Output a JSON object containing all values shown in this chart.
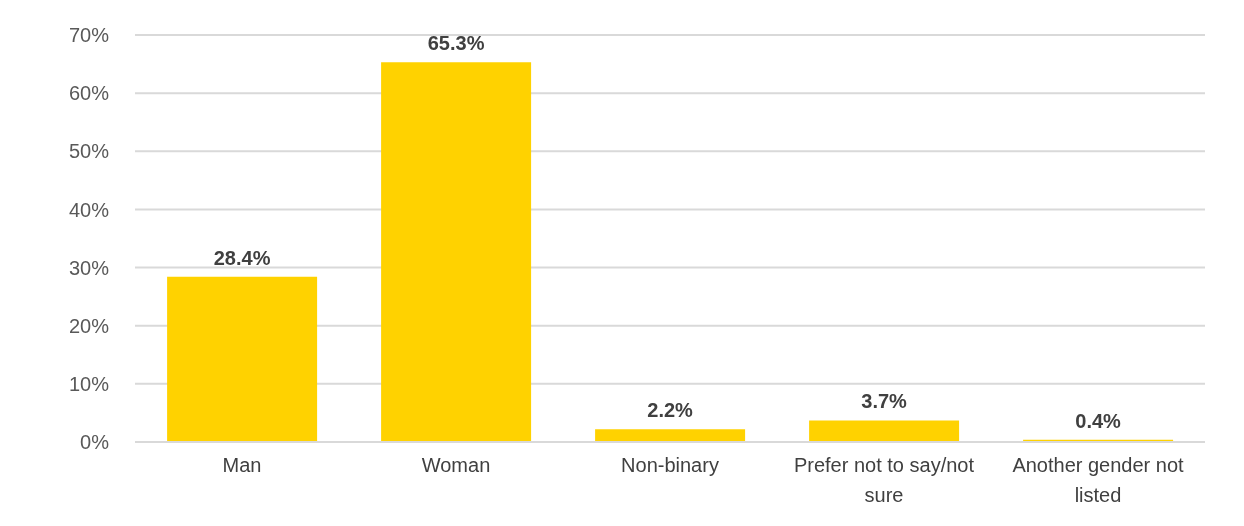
{
  "chart_data": {
    "type": "bar",
    "categories": [
      "Man",
      "Woman",
      "Non-binary",
      "Prefer not to say/not sure",
      "Another gender not listed"
    ],
    "values": [
      28.4,
      65.3,
      2.2,
      3.7,
      0.4
    ],
    "value_labels": [
      "28.4%",
      "65.3%",
      "2.2%",
      "3.7%",
      "0.4%"
    ],
    "color": "#ffd200",
    "ylim": [
      0,
      70
    ],
    "yticks": [
      {
        "value": 0,
        "label": "0%"
      },
      {
        "value": 10,
        "label": "10%"
      },
      {
        "value": 20,
        "label": "20%"
      },
      {
        "value": 30,
        "label": "30%"
      },
      {
        "value": 40,
        "label": "40%"
      },
      {
        "value": 50,
        "label": "50%"
      },
      {
        "value": 60,
        "label": "60%"
      },
      {
        "value": 70,
        "label": "70%"
      }
    ],
    "grid": "y"
  }
}
